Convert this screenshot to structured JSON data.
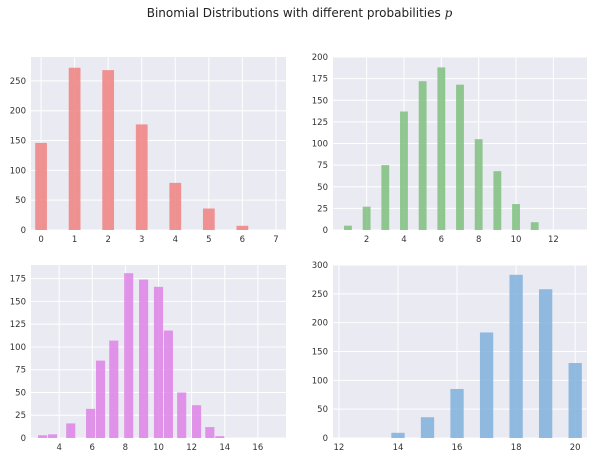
{
  "figure": {
    "title": "Binomial Distributions with different probabilities p",
    "title_text": "Binomial Distributions with different probabilities ",
    "title_symbol": "p",
    "background": "#ffffff",
    "axes_background": "#eaeaf2",
    "grid_color": "#ffffff"
  },
  "chart_data": [
    {
      "type": "bar",
      "position": "top-left",
      "color": "#f08080",
      "bar_width": 0.35,
      "x": [
        0,
        1,
        2,
        3,
        4,
        5,
        6
      ],
      "values": [
        146,
        272,
        268,
        177,
        79,
        36,
        7
      ],
      "xlim": [
        -0.3,
        7.3
      ],
      "ylim": [
        0,
        290
      ],
      "xticks": [
        0,
        1,
        2,
        3,
        4,
        5,
        6,
        7
      ],
      "yticks": [
        0,
        50,
        100,
        150,
        200,
        250
      ],
      "grid": true,
      "title": "",
      "xlabel": "",
      "ylabel": ""
    },
    {
      "type": "bar",
      "position": "top-right",
      "color": "#7fbf7f",
      "bar_width": 0.42,
      "x": [
        1,
        2,
        3,
        4,
        5,
        6,
        7,
        8,
        9,
        10,
        11
      ],
      "values": [
        5,
        27,
        75,
        137,
        172,
        188,
        168,
        105,
        68,
        30,
        9
      ],
      "xlim": [
        0.2,
        13.8
      ],
      "ylim": [
        0,
        200
      ],
      "xticks": [
        2,
        4,
        6,
        8,
        10,
        12
      ],
      "yticks": [
        0,
        25,
        50,
        75,
        100,
        125,
        150,
        175,
        200
      ],
      "grid": true,
      "title": "",
      "xlabel": "",
      "ylabel": ""
    },
    {
      "type": "bar",
      "position": "bottom-left",
      "color": "#dd82e6",
      "bar_width": 0.55,
      "x": [
        3,
        3.6,
        4.7,
        5.9,
        6.5,
        7.3,
        8.2,
        9.1,
        10.0,
        10.6,
        11.4,
        12.3,
        13.1,
        13.7,
        14.6,
        15.8
      ],
      "values": [
        3,
        4,
        16,
        32,
        85,
        107,
        181,
        174,
        166,
        118,
        50,
        36,
        12,
        2,
        0,
        0
      ],
      "xlim": [
        2.3,
        17.7
      ],
      "ylim": [
        0,
        190
      ],
      "xticks": [
        4,
        6,
        8,
        10,
        12,
        14,
        16
      ],
      "yticks": [
        0,
        25,
        50,
        75,
        100,
        125,
        150,
        175
      ],
      "grid": true,
      "title": "",
      "xlabel": "",
      "ylabel": ""
    },
    {
      "type": "bar",
      "position": "bottom-right",
      "color": "#7fb0dc",
      "bar_width": 0.45,
      "x": [
        12,
        13,
        14,
        15,
        16,
        17,
        18,
        19,
        20
      ],
      "values": [
        0,
        0,
        9,
        36,
        85,
        183,
        283,
        258,
        130
      ],
      "xlim": [
        11.8,
        20.4
      ],
      "ylim": [
        0,
        300
      ],
      "xticks": [
        12,
        14,
        16,
        18,
        20
      ],
      "yticks": [
        0,
        50,
        100,
        150,
        200,
        250,
        300
      ],
      "grid": true,
      "title": "",
      "xlabel": "",
      "ylabel": ""
    }
  ]
}
